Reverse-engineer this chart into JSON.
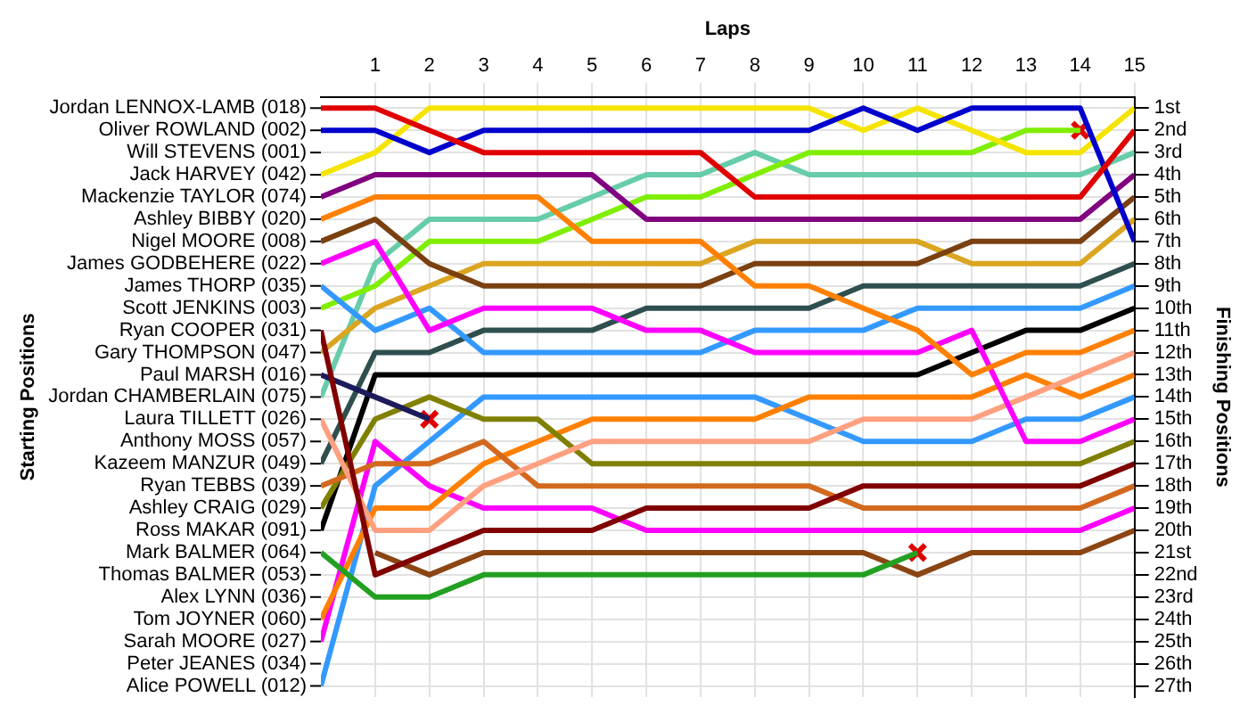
{
  "chart_data": {
    "type": "line",
    "xlabel": "Laps",
    "ylabel": "Finishing Positions",
    "grid": true,
    "legend": false,
    "marker": "none",
    "line_style": "solid",
    "x": [
      0,
      1,
      2,
      3,
      4,
      5,
      6,
      7,
      8,
      9,
      10,
      11,
      12,
      13,
      14,
      15
    ],
    "xlim": [
      0,
      15
    ],
    "xticks": [
      1,
      2,
      3,
      4,
      5,
      6,
      7,
      8,
      9,
      10,
      11,
      12,
      13,
      14,
      15
    ],
    "ylim": [
      27.5,
      0.5
    ],
    "yticks": [
      {
        "value": 1,
        "label": "1st"
      },
      {
        "value": 2,
        "label": "2nd"
      },
      {
        "value": 3,
        "label": "3rd"
      },
      {
        "value": 4,
        "label": "4th"
      },
      {
        "value": 5,
        "label": "5th"
      },
      {
        "value": 6,
        "label": "6th"
      },
      {
        "value": 7,
        "label": "7th"
      },
      {
        "value": 8,
        "label": "8th"
      },
      {
        "value": 9,
        "label": "9th"
      },
      {
        "value": 10,
        "label": "10th"
      },
      {
        "value": 11,
        "label": "11th"
      },
      {
        "value": 12,
        "label": "12th"
      },
      {
        "value": 13,
        "label": "13th"
      },
      {
        "value": 14,
        "label": "14th"
      },
      {
        "value": 15,
        "label": "15th"
      },
      {
        "value": 16,
        "label": "16th"
      },
      {
        "value": 17,
        "label": "17th"
      },
      {
        "value": 18,
        "label": "18th"
      },
      {
        "value": 19,
        "label": "19th"
      },
      {
        "value": 20,
        "label": "20th"
      },
      {
        "value": 21,
        "label": "21st"
      },
      {
        "value": 22,
        "label": "22nd"
      },
      {
        "value": 23,
        "label": "23rd"
      },
      {
        "value": 24,
        "label": "24th"
      },
      {
        "value": 25,
        "label": "25th"
      },
      {
        "value": 26,
        "label": "26th"
      },
      {
        "value": 27,
        "label": "27th"
      }
    ],
    "annotations": [
      "Starting Positions",
      "Jordan LENNOX-LAMB (018)",
      "Oliver ROWLAND (002)",
      "Will STEVENS (001)",
      "Jack HARVEY (042)",
      "Mackenzie TAYLOR (074)",
      "Ashley BIBBY (020)",
      "Nigel MOORE (008)",
      "James GODBEHERE (022)",
      "James THORP (035)",
      "Scott JENKINS (003)",
      "Ryan COOPER (031)",
      "Gary THOMPSON (047)",
      "Paul MARSH (016)",
      "Jordan CHAMBERLAIN (075)",
      "Laura TILLETT (026)",
      "Anthony MOSS (057)",
      "Kazeem MANZUR (049)",
      "Ryan TEBBS (039)",
      "Ashley CRAIG (029)",
      "Ross MAKAR (091)",
      "Mark BALMER (064)",
      "Thomas BALMER (053)",
      "Alex LYNN (036)",
      "Tom JOYNER (060)",
      "Sarah MOORE (027)",
      "Peter JEANES (034)",
      "Alice POWELL (012)"
    ],
    "series": [
      {
        "color": "#e00000",
        "values": [
          1,
          1,
          2,
          3,
          3,
          3,
          3,
          3,
          5,
          5,
          5,
          5,
          5,
          5,
          5,
          2
        ]
      },
      {
        "color": "#0000cc",
        "values": [
          2,
          2,
          3,
          2,
          2,
          2,
          2,
          2,
          2,
          2,
          1,
          2,
          1,
          1,
          1,
          7
        ]
      },
      {
        "color": "#f5e400",
        "values": [
          4,
          3,
          1,
          1,
          1,
          1,
          1,
          1,
          1,
          1,
          2,
          1,
          2,
          3,
          3,
          1
        ]
      },
      {
        "color": "#800080",
        "values": [
          5,
          4,
          4,
          4,
          4,
          4,
          6,
          6,
          6,
          6,
          6,
          6,
          6,
          6,
          6,
          4
        ]
      },
      {
        "color": "#ff8000",
        "values": [
          6,
          5,
          5,
          5,
          5,
          7,
          7,
          7,
          9,
          9,
          10,
          11,
          13,
          12,
          12,
          11
        ]
      },
      {
        "color": "#7a4010",
        "values": [
          7,
          6,
          8,
          9,
          9,
          9,
          9,
          9,
          8,
          8,
          8,
          8,
          7,
          7,
          7,
          5
        ]
      },
      {
        "color": "#ff00ff",
        "values": [
          8,
          7,
          11,
          10,
          10,
          10,
          11,
          11,
          12,
          12,
          12,
          12,
          11,
          16,
          16,
          15
        ]
      },
      {
        "color": "#3399ff",
        "values": [
          9,
          11,
          10,
          12,
          12,
          12,
          12,
          12,
          11,
          11,
          11,
          10,
          10,
          10,
          10,
          9
        ]
      },
      {
        "color": "#80ee00",
        "values": [
          10,
          9,
          7,
          7,
          7,
          6,
          5,
          5,
          4,
          3,
          3,
          3,
          3,
          2,
          2,
          null
        ]
      },
      {
        "color": "#800000",
        "values": [
          11,
          22,
          21,
          20,
          20,
          20,
          19,
          19,
          19,
          19,
          18,
          18,
          18,
          18,
          18,
          17
        ]
      },
      {
        "color": "#daa520",
        "values": [
          12,
          10,
          9,
          8,
          8,
          8,
          8,
          8,
          7,
          7,
          7,
          7,
          8,
          8,
          8,
          6
        ]
      },
      {
        "color": "#1c1c5c",
        "values": [
          13,
          14,
          15,
          null,
          null,
          null,
          null,
          null,
          null,
          null,
          null,
          null,
          null,
          null,
          null,
          null
        ]
      },
      {
        "color": "#66ccaa",
        "values": [
          14,
          8,
          6,
          6,
          6,
          5,
          4,
          4,
          3,
          4,
          4,
          4,
          4,
          4,
          4,
          3
        ]
      },
      {
        "color": "#ffa080",
        "values": [
          15,
          20,
          20,
          18,
          17,
          16,
          16,
          16,
          16,
          16,
          15,
          15,
          15,
          14,
          13,
          12
        ]
      },
      {
        "color": "#2f4f4f",
        "values": [
          17,
          12,
          12,
          11,
          11,
          11,
          10,
          10,
          10,
          10,
          9,
          9,
          9,
          9,
          9,
          8
        ]
      },
      {
        "color": "#d2691e",
        "values": [
          18,
          17,
          17,
          16,
          18,
          18,
          18,
          18,
          18,
          18,
          19,
          19,
          19,
          19,
          19,
          18
        ]
      },
      {
        "color": "#808000",
        "values": [
          19,
          15,
          14,
          15,
          15,
          17,
          17,
          17,
          17,
          17,
          17,
          17,
          17,
          17,
          17,
          16
        ]
      },
      {
        "color": "#000000",
        "values": [
          20,
          13,
          13,
          13,
          13,
          13,
          13,
          13,
          13,
          13,
          13,
          13,
          12,
          11,
          11,
          10
        ]
      },
      {
        "color": "#22a022",
        "values": [
          21,
          23,
          23,
          22,
          22,
          22,
          22,
          22,
          22,
          22,
          22,
          21,
          null,
          null,
          null,
          null
        ]
      },
      {
        "color": "#ff8000",
        "values": [
          24,
          19,
          19,
          17,
          16,
          15,
          15,
          15,
          15,
          14,
          14,
          14,
          14,
          13,
          14,
          13
        ]
      },
      {
        "color": "#ff00ff",
        "values": [
          25,
          16,
          18,
          19,
          19,
          19,
          20,
          20,
          20,
          20,
          20,
          20,
          20,
          20,
          20,
          19
        ]
      },
      {
        "color": "#3399ff",
        "values": [
          27,
          18,
          16,
          14,
          14,
          14,
          14,
          14,
          14,
          15,
          16,
          16,
          16,
          15,
          15,
          14
        ]
      },
      {
        "color": "#8b4513",
        "values": [
          null,
          21,
          22,
          21,
          21,
          21,
          21,
          21,
          21,
          21,
          21,
          22,
          21,
          21,
          21,
          20
        ]
      },
      {
        "type": "scatter",
        "marker": "cross",
        "color": "#e00000",
        "x": [
          2,
          11,
          14
        ],
        "values": [
          15,
          21,
          2
        ]
      }
    ]
  }
}
